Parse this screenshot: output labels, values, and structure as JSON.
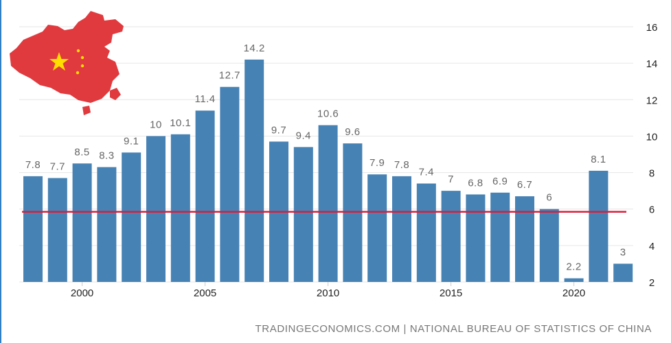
{
  "chart_data": {
    "type": "bar",
    "x": [
      1998,
      1999,
      2000,
      2001,
      2002,
      2003,
      2004,
      2005,
      2006,
      2007,
      2008,
      2009,
      2010,
      2011,
      2012,
      2013,
      2014,
      2015,
      2016,
      2017,
      2018,
      2019,
      2020,
      2021,
      2022
    ],
    "values": [
      7.8,
      7.7,
      8.5,
      8.3,
      9.1,
      10,
      10.1,
      11.4,
      12.7,
      14.2,
      9.7,
      9.4,
      10.6,
      9.6,
      7.9,
      7.8,
      7.4,
      7,
      6.8,
      6.9,
      6.7,
      6,
      2.2,
      8.1,
      3
    ],
    "data_labels": [
      "7.8",
      "7.7",
      "8.5",
      "8.3",
      "9.1",
      "10",
      "10.1",
      "11.4",
      "12.7",
      "14.2",
      "9.7",
      "9.4",
      "10.6",
      "9.6",
      "7.9",
      "7.8",
      "7.4",
      "7",
      "6.8",
      "6.9",
      "6.7",
      "6",
      "2.2",
      "8.1",
      "3"
    ],
    "x_ticks": [
      "2000",
      "2005",
      "2010",
      "2015",
      "2020"
    ],
    "y_ticks": [
      "2",
      "4",
      "6",
      "8",
      "10",
      "12",
      "14",
      "16"
    ],
    "ylim": [
      2,
      16
    ],
    "reference_line": 5.85,
    "grid": true,
    "y_axis_side": "right",
    "title": "",
    "xlabel": "",
    "ylabel": ""
  },
  "source": "TRADINGECONOMICS.COM | NATIONAL BUREAU OF STATISTICS OF CHINA",
  "flag_icon": "china-map-flag-icon",
  "colors": {
    "bar": "#4682b4",
    "reference_line": "#d81e3a",
    "grid": "#e6e6e6",
    "map_fill": "#e03a3e",
    "star": "#ffde00",
    "frame_border": "#2f7fc6"
  }
}
